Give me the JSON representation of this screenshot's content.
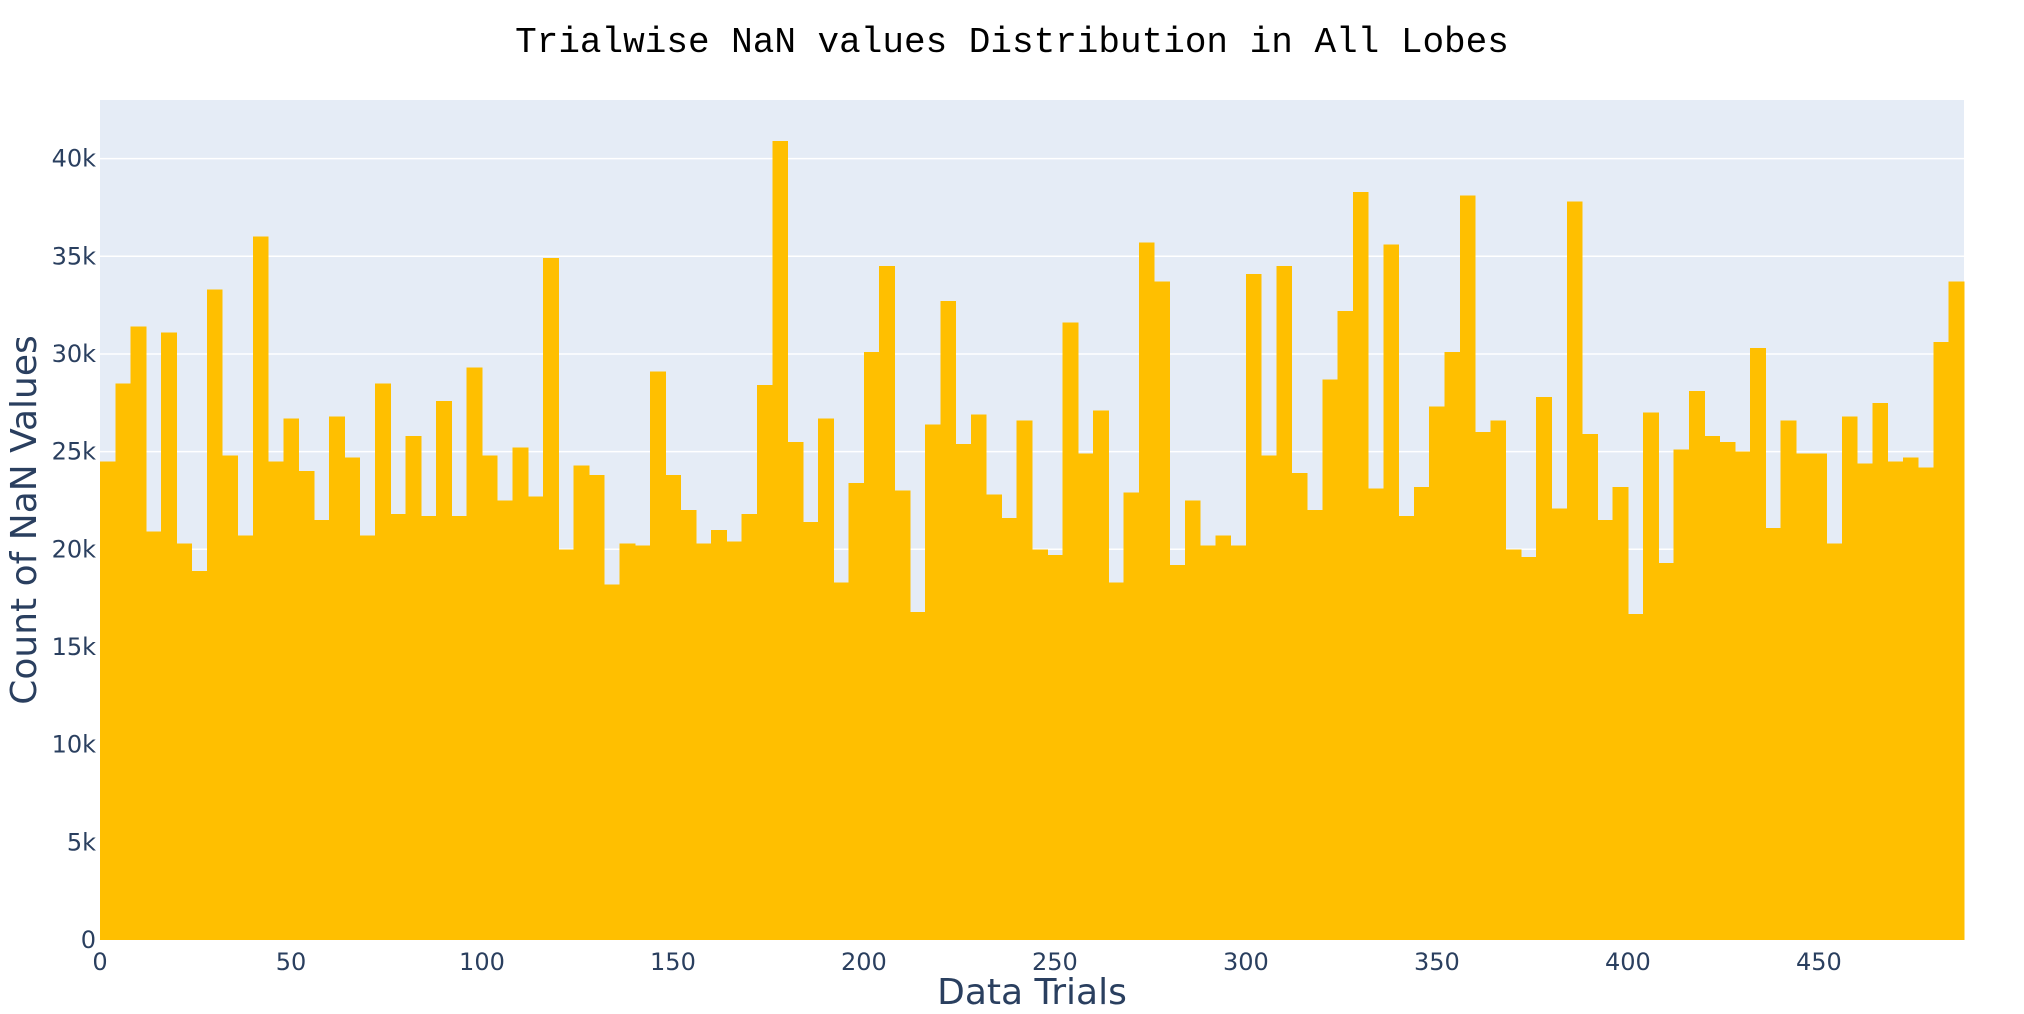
{
  "chart_data": {
    "type": "bar",
    "title": "Trialwise NaN values Distribution in All Lobes",
    "xlabel": "Data Trials",
    "ylabel": "Count of NaN Values",
    "bin_width": 4,
    "x_start": 0,
    "xlim": [
      0,
      488
    ],
    "ylim": [
      0,
      43000
    ],
    "x_ticks": [
      0,
      50,
      100,
      150,
      200,
      250,
      300,
      350,
      400,
      450
    ],
    "y_ticks": [
      0,
      5000,
      10000,
      15000,
      20000,
      25000,
      30000,
      35000,
      40000
    ],
    "y_tick_labels": [
      "0",
      "5k",
      "10k",
      "15k",
      "20k",
      "25k",
      "30k",
      "35k",
      "40k"
    ],
    "values": [
      24500,
      28500,
      31400,
      20900,
      31100,
      20300,
      18900,
      33300,
      24800,
      20700,
      36000,
      24500,
      26700,
      24000,
      21500,
      26800,
      24700,
      20700,
      28500,
      21800,
      25800,
      21700,
      27600,
      21700,
      29300,
      24800,
      22500,
      25200,
      22700,
      34900,
      20000,
      24300,
      23800,
      18200,
      20300,
      20200,
      29100,
      23800,
      22000,
      20300,
      21000,
      20400,
      21800,
      28400,
      40900,
      25500,
      21400,
      26700,
      18300,
      23400,
      30100,
      34500,
      23000,
      16800,
      26400,
      32700,
      25400,
      26900,
      22800,
      21600,
      26600,
      20000,
      19700,
      31600,
      24900,
      27100,
      18300,
      22900,
      35700,
      33700,
      19200,
      22500,
      20200,
      20700,
      20200,
      34100,
      24800,
      34500,
      23900,
      22000,
      28700,
      32200,
      38300,
      23100,
      35600,
      21700,
      23200,
      27300,
      30100,
      38100,
      26000,
      26600,
      20000,
      19600,
      27800,
      22100,
      37800,
      25900,
      21500,
      23200,
      16700,
      27000,
      19300,
      25100,
      28100,
      25800,
      25500,
      25000,
      30300,
      21100,
      26600,
      24900,
      24900,
      20300,
      26800,
      24400,
      27500,
      24500,
      24700,
      24200,
      30600,
      33700
    ],
    "bar_color": "#ffbf00",
    "plot_bg": "#e5ecf6",
    "grid": true
  }
}
